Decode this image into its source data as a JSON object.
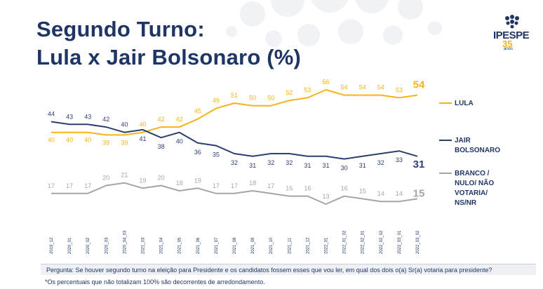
{
  "title_line1": "Segundo Turno:",
  "title_line2": "Lula x Jair Bolsonaro (%)",
  "logo": {
    "name": "IPESPE",
    "anos_number": "35",
    "anos_word": "anos"
  },
  "footer": {
    "question": "Pergunta:  Se houver segundo turno na eleição para Presidente e os candidatos fossem esses que vou ler, em qual dos dois o(a) Sr(a) votaria para presidente?",
    "note": "*Os percentuais que não totalizam 100% são decorrentes de arredondamento."
  },
  "colors": {
    "lula": "#f4b41a",
    "bolsonaro": "#2b3f73",
    "branco": "#a6a6a6",
    "title": "#1f3566"
  },
  "chart_data": {
    "type": "line",
    "x": [
      "2019_12",
      "2020_01",
      "2020_02",
      "2020_03",
      "2020_04_03",
      "2021_03",
      "2021_04",
      "2021_05",
      "2021_06",
      "2021_07",
      "2021_08",
      "2021_09",
      "2021_10",
      "2021_11",
      "2021_12",
      "2022_01",
      "2022_01_02",
      "2022_02_01",
      "2022_02_02",
      "2022_03_01",
      "2022_03_02"
    ],
    "series": [
      {
        "name": "LULA",
        "key": "lula",
        "values": [
          40,
          40,
          40,
          39,
          39,
          40,
          42,
          42,
          45,
          49,
          51,
          50,
          50,
          52,
          53,
          56,
          54,
          54,
          54,
          53,
          54
        ]
      },
      {
        "name": "JAIR BOLSONARO",
        "key": "bolsonaro",
        "values": [
          44,
          43,
          43,
          42,
          40,
          41,
          38,
          40,
          36,
          35,
          32,
          31,
          32,
          32,
          31,
          31,
          30,
          31,
          32,
          33,
          31
        ]
      },
      {
        "name": "BRANCO / NULO/ NÃO VOTARIA/ NS/NR",
        "key": "branco",
        "values": [
          17,
          17,
          17,
          20,
          21,
          19,
          20,
          18,
          19,
          17,
          17,
          18,
          17,
          16,
          16,
          13,
          16,
          15,
          14,
          14,
          15
        ]
      }
    ],
    "legend_position": "right",
    "grid": false
  }
}
